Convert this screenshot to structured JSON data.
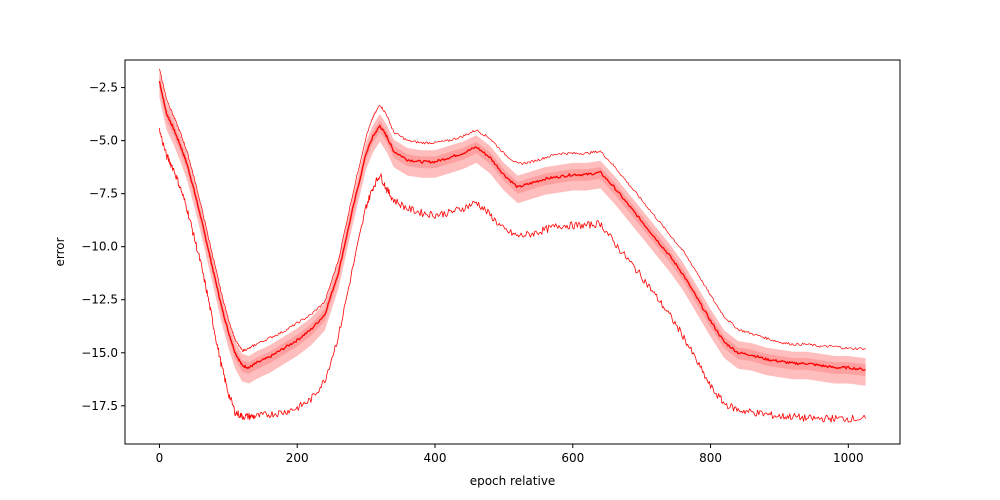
{
  "chart_data": {
    "type": "line",
    "title": "",
    "xlabel": "epoch relative",
    "ylabel": "error",
    "xlim": [
      -50,
      1075
    ],
    "ylim": [
      -19.3,
      -1.2
    ],
    "xticks": [
      0,
      200,
      400,
      600,
      800,
      1000
    ],
    "yticks": [
      -2.5,
      -5.0,
      -7.5,
      -10.0,
      -12.5,
      -15.0,
      -17.5
    ],
    "xtick_labels": [
      "0",
      "200",
      "400",
      "600",
      "800",
      "1000"
    ],
    "ytick_labels": [
      "−2.5",
      "−5.0",
      "−7.5",
      "−10.0",
      "−12.5",
      "−15.0",
      "−17.5"
    ],
    "grid": false,
    "legend": "none",
    "color": "#ff0000",
    "band_color": "#ffb3b3",
    "x": [
      0,
      10,
      20,
      30,
      40,
      50,
      60,
      70,
      80,
      90,
      100,
      110,
      120,
      130,
      140,
      160,
      180,
      200,
      220,
      240,
      260,
      280,
      300,
      310,
      320,
      330,
      340,
      360,
      380,
      400,
      420,
      440,
      460,
      480,
      500,
      520,
      540,
      560,
      580,
      600,
      620,
      640,
      660,
      680,
      700,
      720,
      740,
      760,
      780,
      800,
      820,
      840,
      860,
      880,
      900,
      920,
      940,
      960,
      980,
      1000,
      1025
    ],
    "series": [
      {
        "role": "mean",
        "values": [
          -2.2,
          -3.7,
          -4.4,
          -5.2,
          -6.1,
          -7.3,
          -8.6,
          -10.0,
          -11.4,
          -12.8,
          -14.0,
          -15.0,
          -15.6,
          -15.7,
          -15.5,
          -15.2,
          -14.8,
          -14.4,
          -13.9,
          -13.2,
          -11.2,
          -8.3,
          -5.6,
          -4.8,
          -4.3,
          -4.8,
          -5.5,
          -5.9,
          -6.0,
          -6.0,
          -5.8,
          -5.6,
          -5.3,
          -5.8,
          -6.6,
          -7.2,
          -7.0,
          -6.8,
          -6.7,
          -6.6,
          -6.6,
          -6.5,
          -7.2,
          -8.0,
          -8.8,
          -9.6,
          -10.4,
          -11.3,
          -12.4,
          -13.5,
          -14.5,
          -15.0,
          -15.1,
          -15.3,
          -15.4,
          -15.5,
          -15.5,
          -15.6,
          -15.7,
          -15.7,
          -15.8
        ]
      },
      {
        "role": "upper",
        "values": [
          -1.6,
          -3.0,
          -3.8,
          -4.6,
          -5.5,
          -6.7,
          -8.0,
          -9.4,
          -10.8,
          -12.2,
          -13.4,
          -14.4,
          -14.9,
          -14.8,
          -14.6,
          -14.3,
          -14.0,
          -13.6,
          -13.2,
          -12.6,
          -10.6,
          -7.6,
          -4.8,
          -3.9,
          -3.3,
          -3.8,
          -4.6,
          -5.0,
          -5.1,
          -5.1,
          -5.0,
          -4.8,
          -4.5,
          -4.9,
          -5.6,
          -6.1,
          -6.0,
          -5.8,
          -5.6,
          -5.6,
          -5.6,
          -5.5,
          -6.2,
          -7.0,
          -7.8,
          -8.6,
          -9.4,
          -10.2,
          -11.2,
          -12.3,
          -13.3,
          -13.9,
          -14.1,
          -14.3,
          -14.5,
          -14.6,
          -14.6,
          -14.7,
          -14.7,
          -14.8,
          -14.8
        ]
      },
      {
        "role": "lower",
        "values": [
          -4.5,
          -5.7,
          -6.3,
          -7.2,
          -8.2,
          -9.5,
          -10.8,
          -12.3,
          -14.0,
          -15.6,
          -16.9,
          -17.8,
          -18.0,
          -18.0,
          -18.0,
          -17.9,
          -17.8,
          -17.6,
          -17.2,
          -16.3,
          -14.2,
          -11.1,
          -8.1,
          -7.2,
          -6.6,
          -7.3,
          -7.8,
          -8.2,
          -8.4,
          -8.5,
          -8.4,
          -8.2,
          -7.9,
          -8.5,
          -9.2,
          -9.5,
          -9.4,
          -9.2,
          -9.0,
          -9.0,
          -9.0,
          -8.9,
          -9.8,
          -10.6,
          -11.4,
          -12.3,
          -13.2,
          -14.2,
          -15.4,
          -16.6,
          -17.4,
          -17.7,
          -17.8,
          -17.9,
          -18.0,
          -18.0,
          -18.1,
          -18.1,
          -18.1,
          -18.1,
          -18.1
        ]
      }
    ]
  }
}
